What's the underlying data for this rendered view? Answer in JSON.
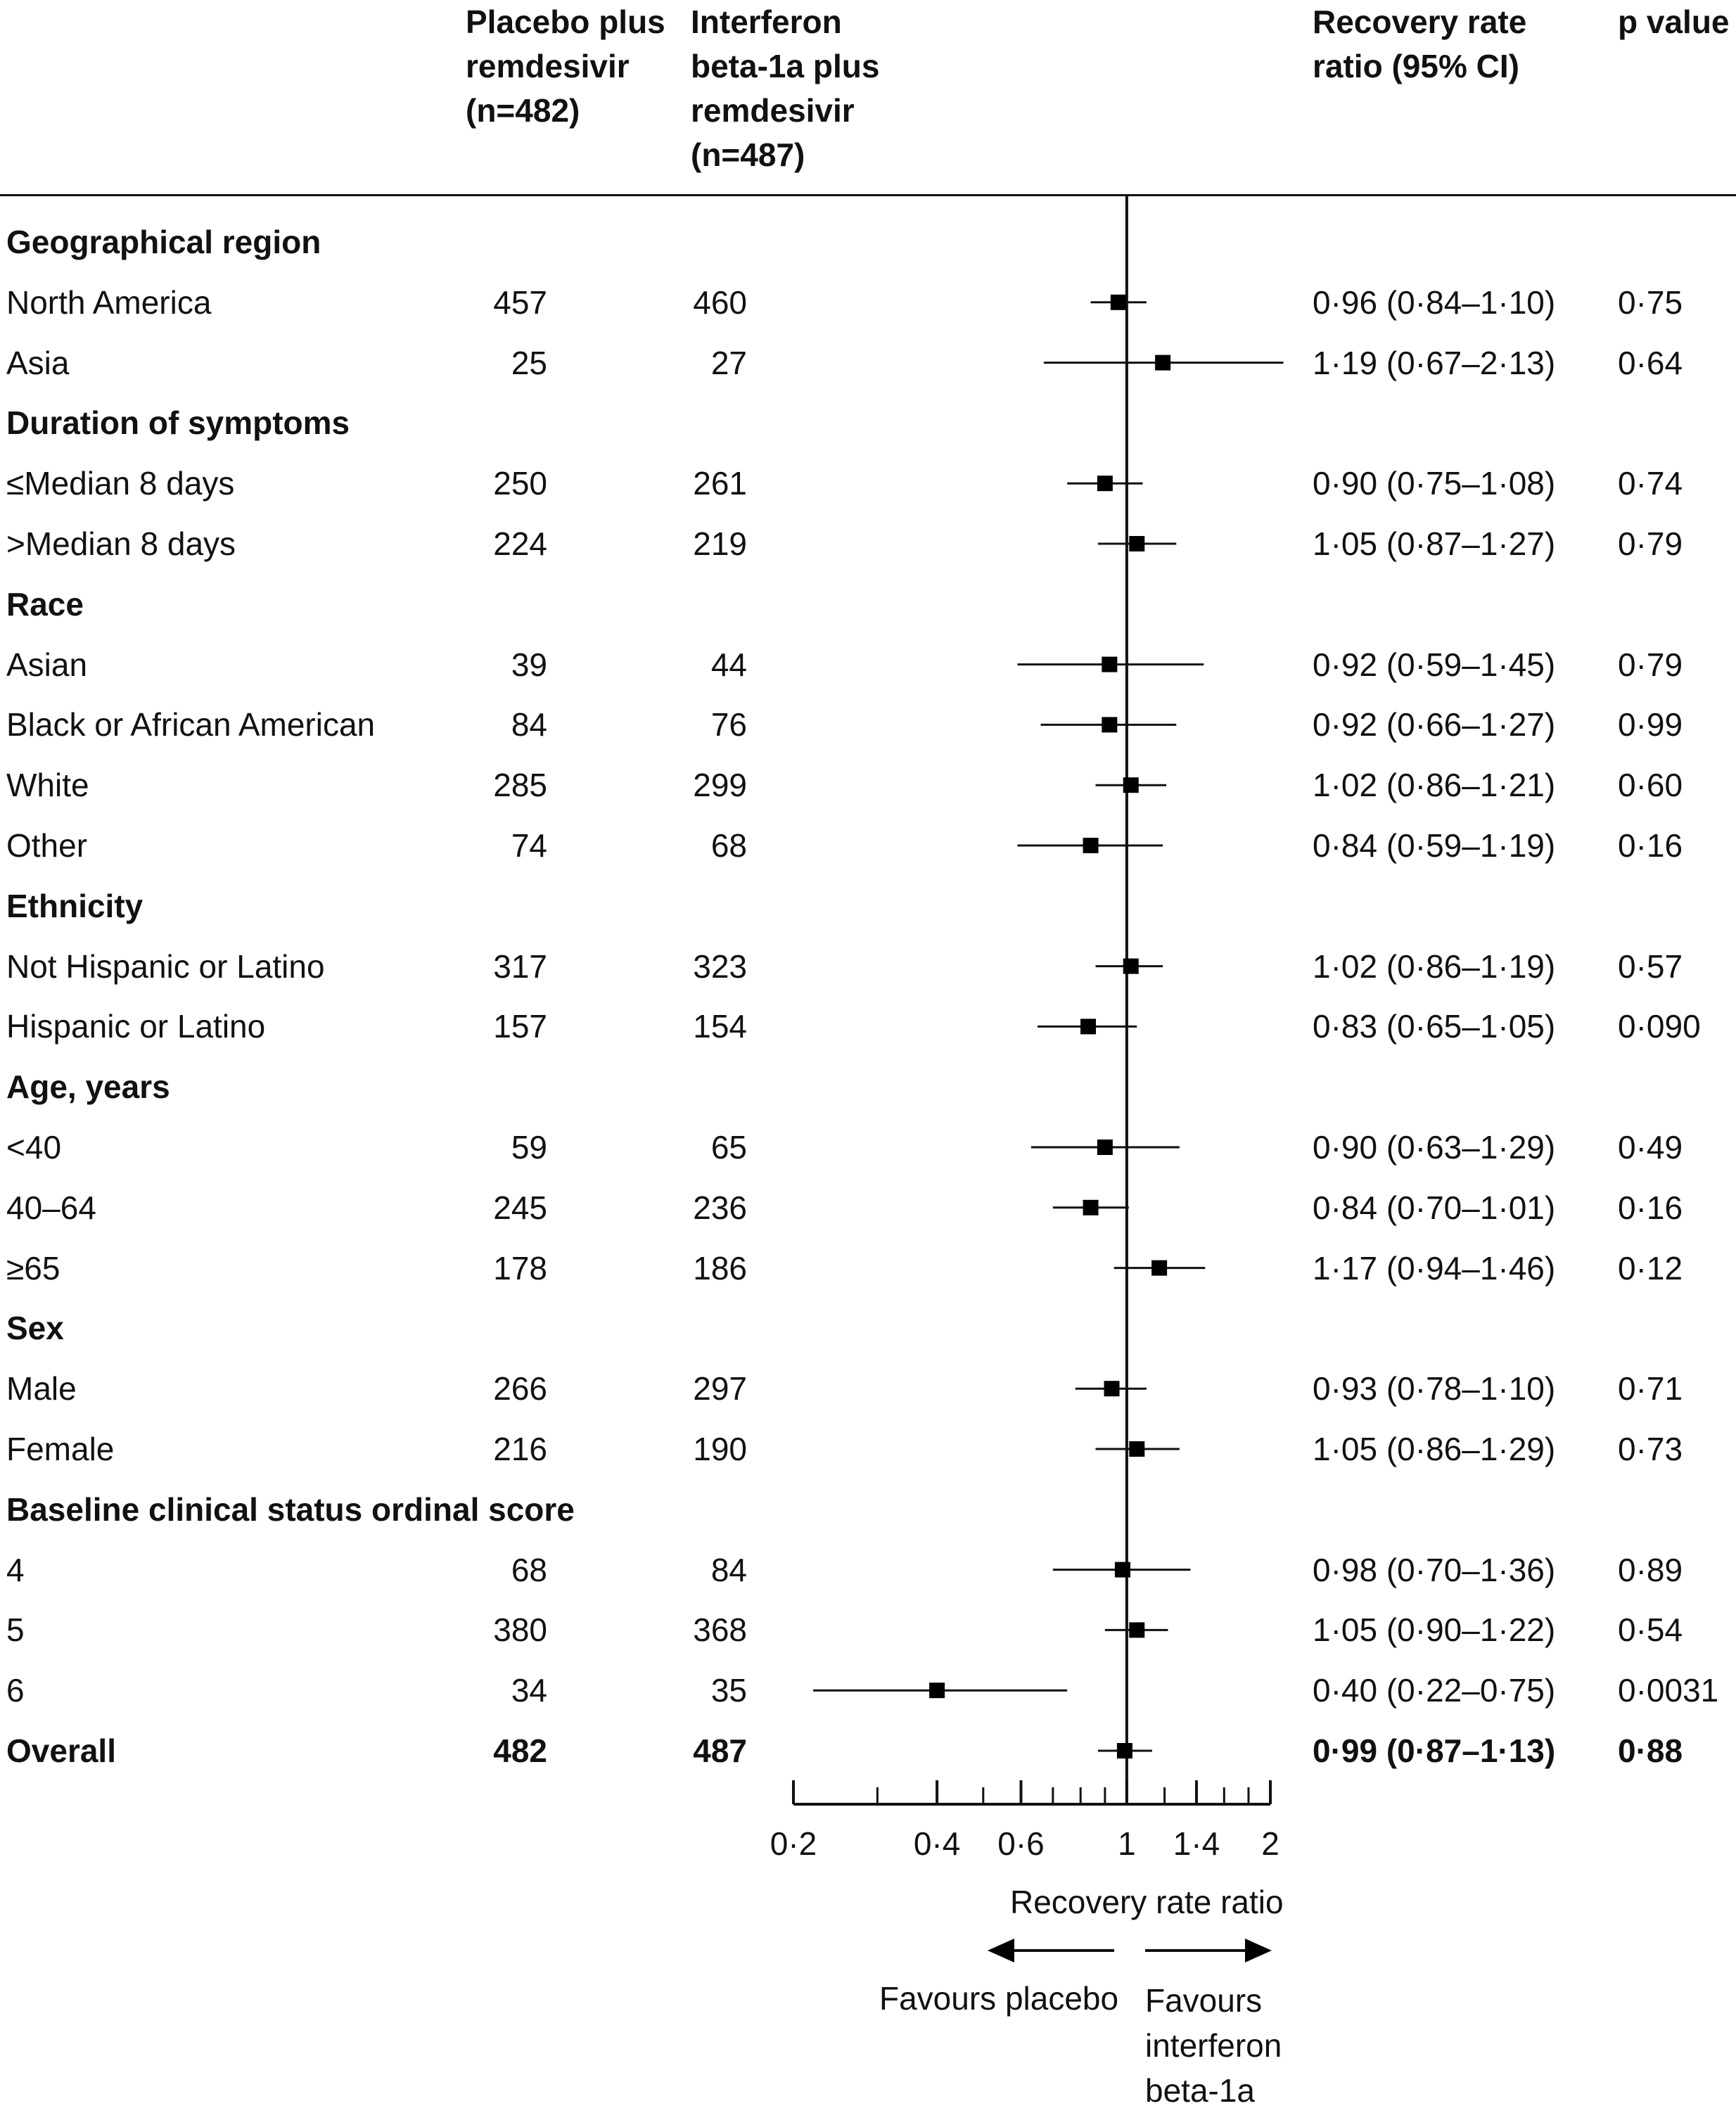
{
  "headers": {
    "placebo": [
      "Placebo plus",
      "remdesivir",
      "(n=482)"
    ],
    "interferon": [
      "Interferon",
      "beta-1a plus",
      "remdesivir",
      "(n=487)"
    ],
    "ratio": [
      "Recovery rate",
      "ratio (95% CI)"
    ],
    "pvalue": [
      "p value"
    ]
  },
  "rows": [
    {
      "type": "group",
      "label": "Geographical region"
    },
    {
      "type": "item",
      "label": "North America",
      "placebo": "457",
      "interferon": "460",
      "ratio": "0·96 (0·84–1·10)",
      "p": "0·75"
    },
    {
      "type": "item",
      "label": "Asia",
      "placebo": "25",
      "interferon": "27",
      "ratio": "1·19 (0·67–2·13)",
      "p": "0·64"
    },
    {
      "type": "group",
      "label": "Duration of symptoms"
    },
    {
      "type": "item",
      "label": "≤Median 8 days",
      "placebo": "250",
      "interferon": "261",
      "ratio": "0·90 (0·75–1·08)",
      "p": "0·74"
    },
    {
      "type": "item",
      "label": ">Median 8 days",
      "placebo": "224",
      "interferon": "219",
      "ratio": "1·05 (0·87–1·27)",
      "p": "0·79"
    },
    {
      "type": "group",
      "label": "Race"
    },
    {
      "type": "item",
      "label": "Asian",
      "placebo": "39",
      "interferon": "44",
      "ratio": "0·92 (0·59–1·45)",
      "p": "0·79"
    },
    {
      "type": "item",
      "label": "Black or African American",
      "placebo": "84",
      "interferon": "76",
      "ratio": "0·92 (0·66–1·27)",
      "p": "0·99"
    },
    {
      "type": "item",
      "label": "White",
      "placebo": "285",
      "interferon": "299",
      "ratio": "1·02 (0·86–1·21)",
      "p": "0·60"
    },
    {
      "type": "item",
      "label": "Other",
      "placebo": "74",
      "interferon": "68",
      "ratio": "0·84 (0·59–1·19)",
      "p": "0·16"
    },
    {
      "type": "group",
      "label": "Ethnicity"
    },
    {
      "type": "item",
      "label": "Not Hispanic or Latino",
      "placebo": "317",
      "interferon": "323",
      "ratio": "1·02 (0·86–1·19)",
      "p": "0·57"
    },
    {
      "type": "item",
      "label": "Hispanic or Latino",
      "placebo": "157",
      "interferon": "154",
      "ratio": "0·83 (0·65–1·05)",
      "p": "0·090"
    },
    {
      "type": "group",
      "label": "Age, years"
    },
    {
      "type": "item",
      "label": "<40",
      "placebo": "59",
      "interferon": "65",
      "ratio": "0·90 (0·63–1·29)",
      "p": "0·49"
    },
    {
      "type": "item",
      "label": "40–64",
      "placebo": "245",
      "interferon": "236",
      "ratio": "0·84 (0·70–1·01)",
      "p": "0·16"
    },
    {
      "type": "item",
      "label": "≥65",
      "placebo": "178",
      "interferon": "186",
      "ratio": "1·17 (0·94–1·46)",
      "p": "0·12"
    },
    {
      "type": "group",
      "label": "Sex"
    },
    {
      "type": "item",
      "label": "Male",
      "placebo": "266",
      "interferon": "297",
      "ratio": "0·93 (0·78–1·10)",
      "p": "0·71"
    },
    {
      "type": "item",
      "label": "Female",
      "placebo": "216",
      "interferon": "190",
      "ratio": "1·05 (0·86–1·29)",
      "p": "0·73"
    },
    {
      "type": "group",
      "label": "Baseline clinical status ordinal score"
    },
    {
      "type": "item",
      "label": "4",
      "placebo": "68",
      "interferon": "84",
      "ratio": "0·98 (0·70–1·36)",
      "p": "0·89"
    },
    {
      "type": "item",
      "label": "5",
      "placebo": "380",
      "interferon": "368",
      "ratio": "1·05 (0·90–1·22)",
      "p": "0·54"
    },
    {
      "type": "item",
      "label": "6",
      "placebo": "34",
      "interferon": "35",
      "ratio": "0·40 (0·22–0·75)",
      "p": "0·0031"
    },
    {
      "type": "overall",
      "label": "Overall",
      "placebo": "482",
      "interferon": "487",
      "ratio": "0·99 (0·87–1·13)",
      "p": "0·88"
    }
  ],
  "chart_data": {
    "type": "forest",
    "x_scale": "log",
    "xlim": [
      0.2,
      2
    ],
    "reference_line": 1,
    "xticks_major": [
      0.2,
      0.4,
      0.6,
      1,
      1.4,
      2
    ],
    "xtick_labels": [
      "0·2",
      "0·4",
      "0·6",
      "1",
      "1·4",
      "2"
    ],
    "xticks_minor": [
      0.3,
      0.5,
      0.7,
      0.8,
      0.9,
      1.2,
      1.6,
      1.8
    ],
    "xlabel": "Recovery rate ratio",
    "favours_left": "Favours placebo",
    "favours_right": [
      "Favours",
      "interferon",
      "beta-1a"
    ],
    "estimates": [
      {
        "row": "North America",
        "est": 0.96,
        "lo": 0.84,
        "hi": 1.1
      },
      {
        "row": "Asia",
        "est": 1.19,
        "lo": 0.67,
        "hi": 2.13
      },
      {
        "row": "≤Median 8 days",
        "est": 0.9,
        "lo": 0.75,
        "hi": 1.08
      },
      {
        "row": ">Median 8 days",
        "est": 1.05,
        "lo": 0.87,
        "hi": 1.27
      },
      {
        "row": "Asian",
        "est": 0.92,
        "lo": 0.59,
        "hi": 1.45
      },
      {
        "row": "Black or African American",
        "est": 0.92,
        "lo": 0.66,
        "hi": 1.27
      },
      {
        "row": "White",
        "est": 1.02,
        "lo": 0.86,
        "hi": 1.21
      },
      {
        "row": "Other",
        "est": 0.84,
        "lo": 0.59,
        "hi": 1.19
      },
      {
        "row": "Not Hispanic or Latino",
        "est": 1.02,
        "lo": 0.86,
        "hi": 1.19
      },
      {
        "row": "Hispanic or Latino",
        "est": 0.83,
        "lo": 0.65,
        "hi": 1.05
      },
      {
        "row": "<40",
        "est": 0.9,
        "lo": 0.63,
        "hi": 1.29
      },
      {
        "row": "40–64",
        "est": 0.84,
        "lo": 0.7,
        "hi": 1.01
      },
      {
        "row": "≥65",
        "est": 1.17,
        "lo": 0.94,
        "hi": 1.46
      },
      {
        "row": "Male",
        "est": 0.93,
        "lo": 0.78,
        "hi": 1.1
      },
      {
        "row": "Female",
        "est": 1.05,
        "lo": 0.86,
        "hi": 1.29
      },
      {
        "row": "4",
        "est": 0.98,
        "lo": 0.7,
        "hi": 1.36
      },
      {
        "row": "5",
        "est": 1.05,
        "lo": 0.9,
        "hi": 1.22
      },
      {
        "row": "6",
        "est": 0.4,
        "lo": 0.22,
        "hi": 0.75
      },
      {
        "row": "Overall",
        "est": 0.99,
        "lo": 0.87,
        "hi": 1.13
      }
    ]
  }
}
